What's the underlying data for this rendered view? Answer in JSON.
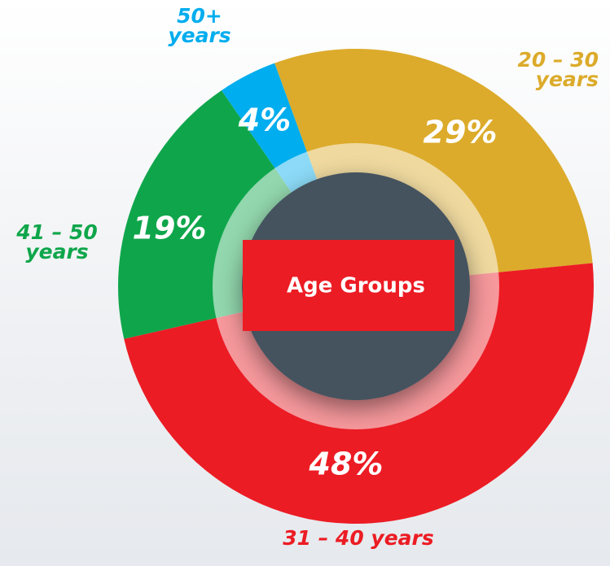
{
  "chart_data": {
    "type": "donut",
    "title": "Age Groups",
    "categories": [
      "20 – 30 years",
      "31 – 40 years",
      "41 – 50 years",
      "50+ years"
    ],
    "values": [
      29,
      48,
      19,
      4
    ],
    "value_labels": [
      "29%",
      "48%",
      "19%",
      "4%"
    ],
    "colors": [
      "#dcab2b",
      "#ec1c24",
      "#0fa64b",
      "#00adee"
    ]
  }
}
